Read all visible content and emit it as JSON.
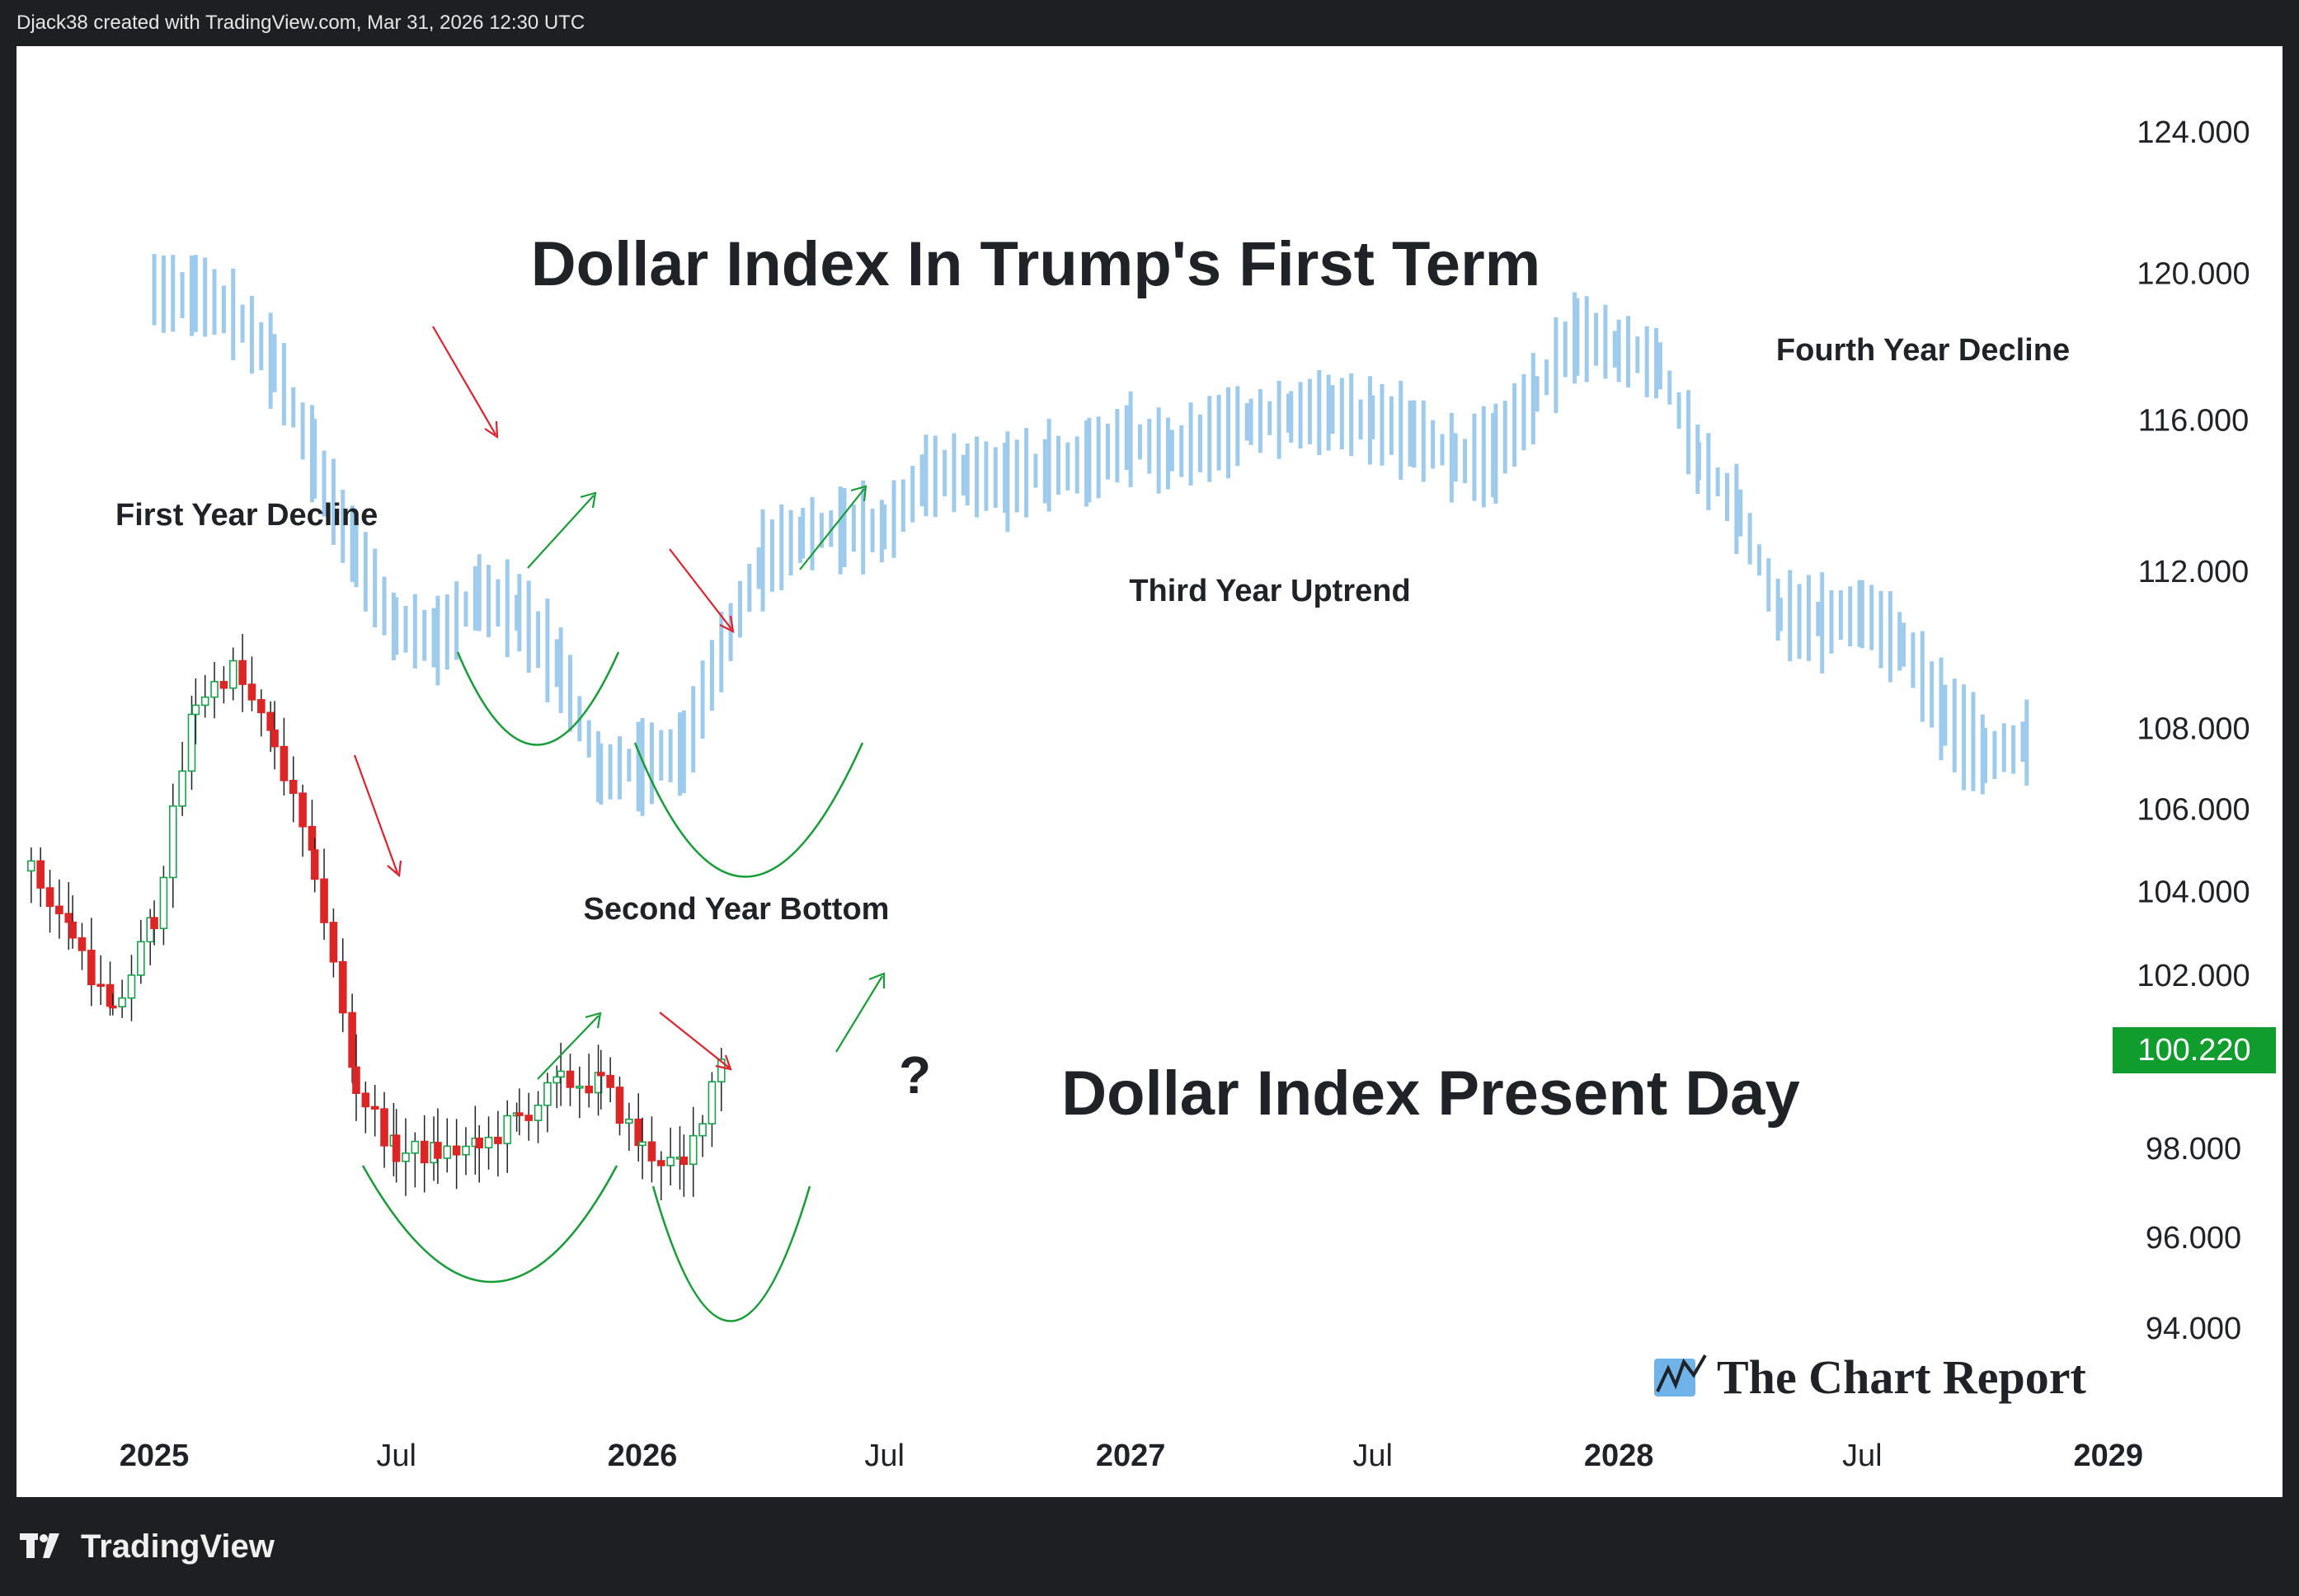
{
  "header": {
    "attribution": "Djack38 created with TradingView.com, Mar 31, 2026 12:30 UTC"
  },
  "footer": {
    "brand": "TradingView"
  },
  "watermark": {
    "text": "The Chart Report",
    "icon": "chart-line-icon"
  },
  "colors": {
    "up": "#16a34a",
    "down": "#dc2626",
    "ghost": "#9ecbec",
    "price_tag": "#119d2e",
    "text": "#1f2328",
    "arrow_red": "#e0212c",
    "arrow_green": "#169d36"
  },
  "chart_data": {
    "type": "bar",
    "title": "Dollar Index In Trump's First Term",
    "subtitle": "Dollar Index Present Day",
    "current_price": "100.220",
    "y_axis": {
      "scale": "log",
      "ylim": [
        93.2,
        126.0
      ],
      "tick_labels": [
        "124.000",
        "120.000",
        "116.000",
        "112.000",
        "108.000",
        "106.000",
        "104.000",
        "102.000",
        "98.000",
        "96.000",
        "94.000"
      ]
    },
    "x_axis": {
      "range": [
        "2024-09-20",
        "2029-01-03"
      ],
      "tick_labels": [
        {
          "label": "2025",
          "date": "2025-01-01",
          "bold": true
        },
        {
          "label": "Jul",
          "date": "2025-07-01",
          "bold": false
        },
        {
          "label": "2026",
          "date": "2026-01-01",
          "bold": true
        },
        {
          "label": "Jul",
          "date": "2026-07-01",
          "bold": false
        },
        {
          "label": "2027",
          "date": "2027-01-01",
          "bold": true
        },
        {
          "label": "Jul",
          "date": "2027-07-01",
          "bold": false
        },
        {
          "label": "2028",
          "date": "2028-01-01",
          "bold": true
        },
        {
          "label": "Jul",
          "date": "2028-07-01",
          "bold": false
        },
        {
          "label": "2029",
          "date": "2029-01-01",
          "bold": true
        }
      ]
    },
    "annotations": [
      "First Year Decline",
      "Second Year Bottom",
      "Third Year Uptrend",
      "Fourth Year Decline",
      "?"
    ],
    "series": [
      {
        "name": "Dollar Index In Trump's First Term",
        "style": "bars",
        "x": [
          "2025-01-01",
          "2025-02-01",
          "2025-03-01",
          "2025-04-01",
          "2025-05-01",
          "2025-06-01",
          "2025-07-01",
          "2025-08-01",
          "2025-09-01",
          "2025-10-01",
          "2025-11-01",
          "2025-12-01",
          "2026-01-01",
          "2026-02-01",
          "2026-03-01",
          "2026-04-01",
          "2026-05-01",
          "2026-06-01",
          "2026-07-01",
          "2026-08-01",
          "2026-09-01",
          "2026-10-01",
          "2026-11-01",
          "2026-12-01",
          "2027-01-01",
          "2027-02-01",
          "2027-03-01",
          "2027-04-01",
          "2027-05-01",
          "2027-06-01",
          "2027-07-01",
          "2027-08-01",
          "2027-09-01",
          "2027-10-01",
          "2027-11-01",
          "2027-12-01",
          "2028-01-01",
          "2028-02-01",
          "2028-03-01",
          "2028-04-01",
          "2028-05-01",
          "2028-06-01",
          "2028-07-01",
          "2028-08-01",
          "2028-09-01",
          "2028-10-01",
          "2028-11-01"
        ],
        "values": [
          119.6,
          119.5,
          119.0,
          117.6,
          115.0,
          112.5,
          110.6,
          110.3,
          111.5,
          111.0,
          109.6,
          107.0,
          107.2,
          107.5,
          110.0,
          112.4,
          113.0,
          113.2,
          113.2,
          114.6,
          114.6,
          114.5,
          114.8,
          115.0,
          115.6,
          115.2,
          115.6,
          116.0,
          116.2,
          116.3,
          116.1,
          115.7,
          115.0,
          115.2,
          116.8,
          118.4,
          118.0,
          117.5,
          115.0,
          113.6,
          110.9,
          110.8,
          111.0,
          110.2,
          108.4,
          107.4,
          107.7
        ]
      },
      {
        "name": "Dollar Index Present Day",
        "style": "candles",
        "x": [
          "2024-10-01",
          "2024-11-01",
          "2024-12-01",
          "2025-01-01",
          "2025-02-01",
          "2025-03-01",
          "2025-04-01",
          "2025-05-01",
          "2025-06-01",
          "2025-07-01",
          "2025-08-01",
          "2025-09-01",
          "2025-10-01",
          "2025-11-01",
          "2025-12-01",
          "2026-01-01",
          "2026-02-01",
          "2026-03-01"
        ],
        "values": [
          104.5,
          103.0,
          101.0,
          103.4,
          108.7,
          109.5,
          107.6,
          104.5,
          99.4,
          97.9,
          97.9,
          98.0,
          98.7,
          99.5,
          99.5,
          98.0,
          97.5,
          100.2
        ]
      }
    ]
  }
}
